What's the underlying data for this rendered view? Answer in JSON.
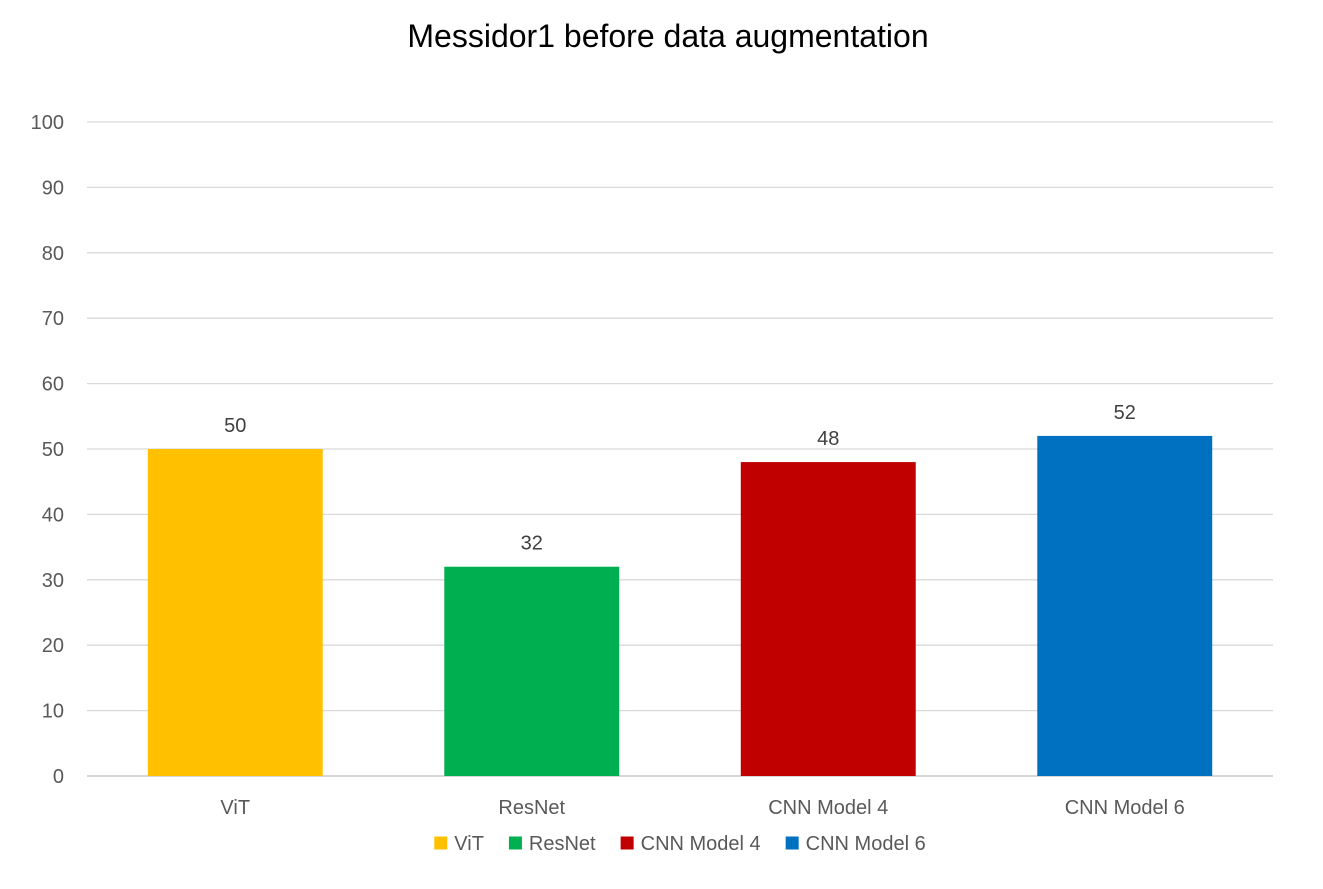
{
  "chart_data": {
    "type": "bar",
    "title": "Messidor1 before data augmentation",
    "xlabel": "",
    "ylabel": "",
    "categories": [
      "ViT",
      "ResNet",
      "CNN Model 4",
      "CNN Model 6"
    ],
    "values": [
      50,
      32,
      48,
      52
    ],
    "data_labels": [
      "50",
      "32",
      "48",
      "52"
    ],
    "colors": [
      "#FFC000",
      "#00B050",
      "#C00000",
      "#0070C0"
    ],
    "ylim": [
      0,
      100
    ],
    "yticks": [
      0,
      10,
      20,
      30,
      40,
      50,
      60,
      70,
      80,
      90,
      100
    ],
    "ytick_labels": [
      "0",
      "10",
      "20",
      "30",
      "40",
      "50",
      "60",
      "70",
      "80",
      "90",
      "100"
    ],
    "grid": true,
    "legend": {
      "position": "bottom",
      "entries": [
        "ViT",
        "ResNet",
        "CNN Model 4",
        "CNN Model 6"
      ]
    }
  }
}
